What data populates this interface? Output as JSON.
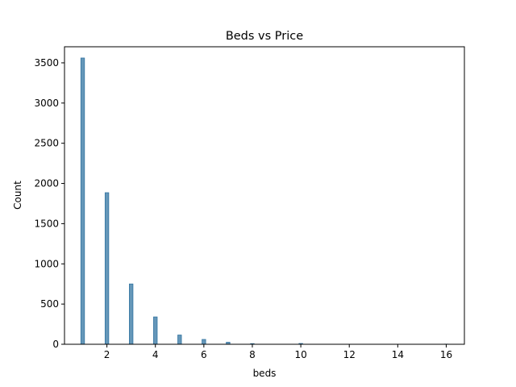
{
  "chart_data": {
    "type": "bar",
    "title": "Beds vs Price",
    "xlabel": "beds",
    "ylabel": "Count",
    "xlim": [
      0.25,
      16.75
    ],
    "ylim": [
      0,
      3700
    ],
    "xticks": [
      2,
      4,
      6,
      8,
      10,
      12,
      14,
      16
    ],
    "yticks": [
      0,
      500,
      1000,
      1500,
      2000,
      2500,
      3000,
      3500
    ],
    "bin_width": 0.15,
    "bar_color": "#3274a1",
    "bar_fill_opacity": 0.75,
    "grid": false,
    "legend": "none",
    "bins": [
      {
        "x": 1,
        "count": 3560
      },
      {
        "x": 2,
        "count": 1885
      },
      {
        "x": 3,
        "count": 750
      },
      {
        "x": 4,
        "count": 340
      },
      {
        "x": 5,
        "count": 115
      },
      {
        "x": 6,
        "count": 60
      },
      {
        "x": 7,
        "count": 25
      },
      {
        "x": 8,
        "count": 8
      },
      {
        "x": 10,
        "count": 10
      },
      {
        "x": 16,
        "count": 2
      }
    ]
  }
}
